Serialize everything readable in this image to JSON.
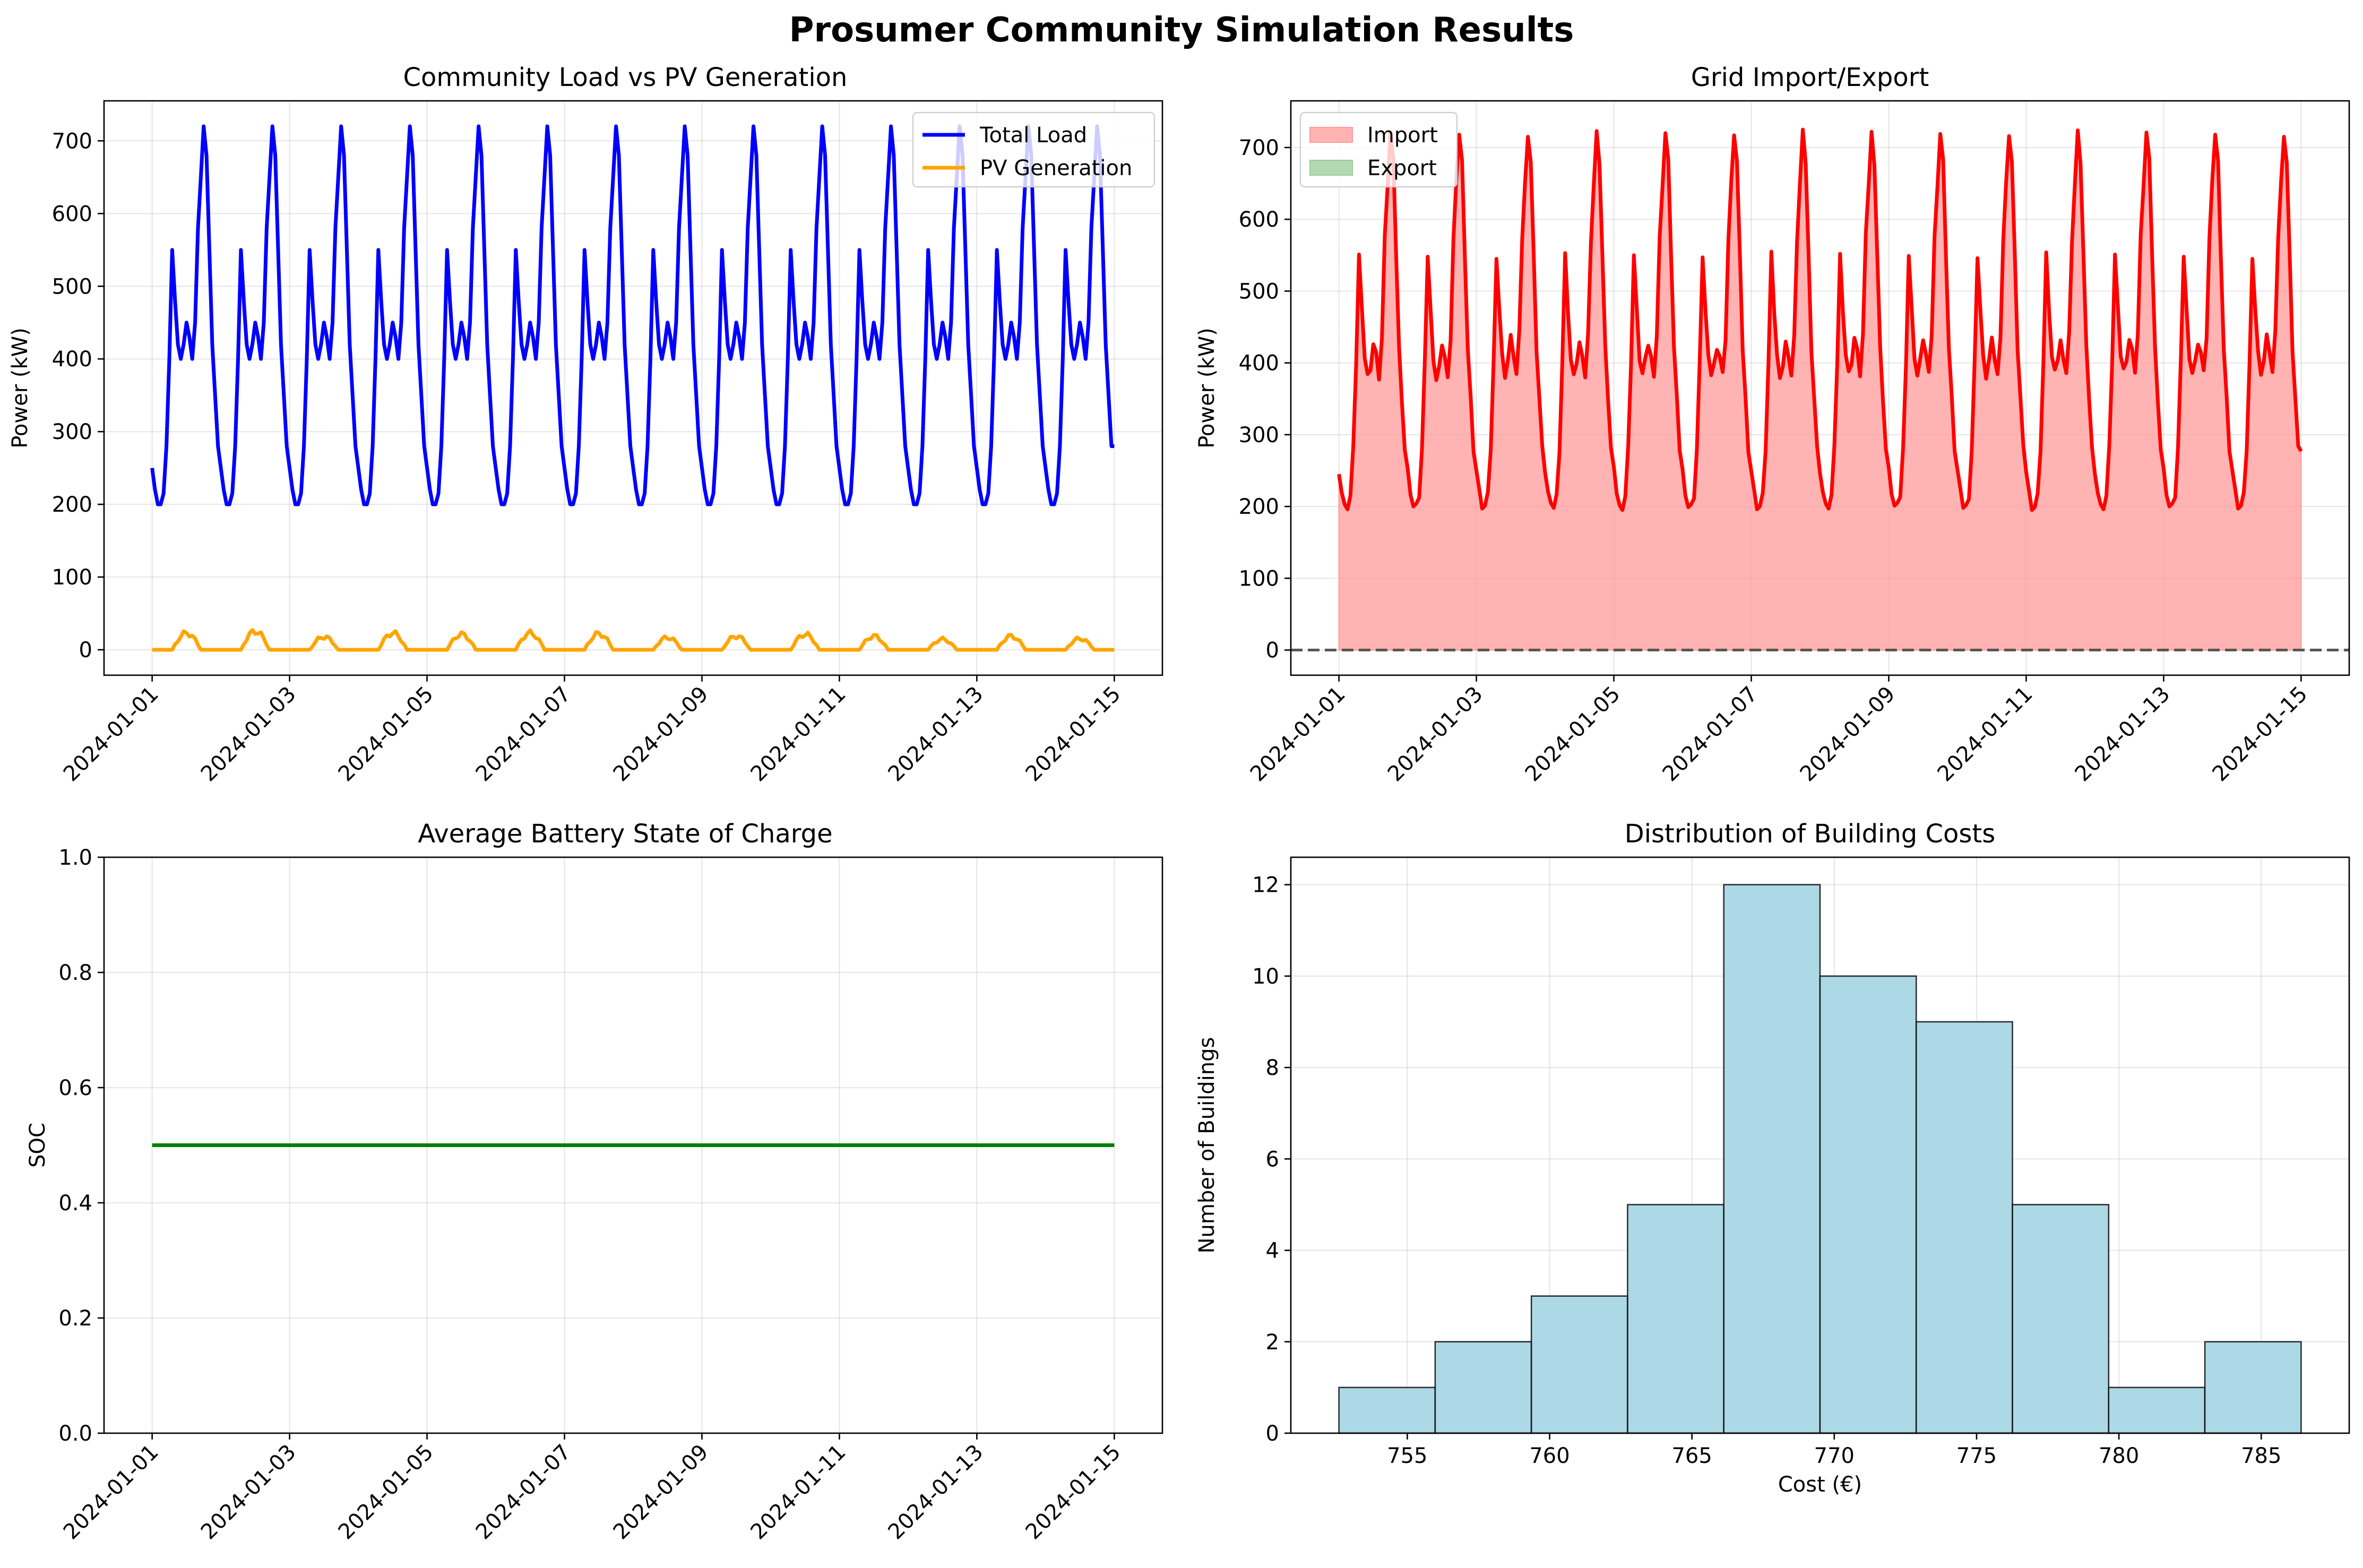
{
  "figure": {
    "title": "Prosumer Community Simulation Results"
  },
  "chart_data": [
    {
      "id": "load_pv",
      "type": "line",
      "title": "Community Load vs PV Generation",
      "xlabel": "",
      "ylabel": "Power (kW)",
      "x_type": "datetime",
      "x_range": [
        "2024-01-01",
        "2024-01-15"
      ],
      "x_ticks": [
        "2024-01-01",
        "2024-01-03",
        "2024-01-05",
        "2024-01-07",
        "2024-01-09",
        "2024-01-11",
        "2024-01-13",
        "2024-01-15"
      ],
      "ylim": [
        -35,
        755
      ],
      "y_ticks": [
        0,
        100,
        200,
        300,
        400,
        500,
        600,
        700
      ],
      "grid": true,
      "legend": "upper right",
      "colors": {
        "Total Load": "#0000ff",
        "PV Generation": "#ffa500"
      },
      "series": [
        {
          "name": "Total Load",
          "daily_profile_hourly": [
            250,
            220,
            200,
            200,
            215,
            280,
            400,
            550,
            480,
            420,
            400,
            420,
            450,
            430,
            400,
            450,
            580,
            650,
            720,
            680,
            550,
            420,
            350,
            280
          ],
          "days": 14
        },
        {
          "name": "PV Generation",
          "daily_peaks": [
            27,
            30,
            21,
            27,
            25,
            27,
            26,
            20,
            22,
            25,
            22,
            17,
            22,
            18
          ],
          "daylight_hours": [
            7,
            17
          ],
          "days": 14
        }
      ]
    },
    {
      "id": "grid",
      "type": "area",
      "title": "Grid Import/Export",
      "xlabel": "",
      "ylabel": "Power (kW)",
      "x_type": "datetime",
      "x_range": [
        "2024-01-01",
        "2024-01-15"
      ],
      "x_ticks": [
        "2024-01-01",
        "2024-01-03",
        "2024-01-05",
        "2024-01-07",
        "2024-01-09",
        "2024-01-11",
        "2024-01-13",
        "2024-01-15"
      ],
      "ylim": [
        -35,
        765
      ],
      "y_ticks": [
        0,
        100,
        200,
        300,
        400,
        500,
        600,
        700
      ],
      "grid": true,
      "legend": "upper left",
      "zero_line": true,
      "colors": {
        "line": "#ff0000",
        "Import": "#ff9999",
        "Export": "#99cc99"
      },
      "series": [
        {
          "name": "Import",
          "derived": "Total Load - PV Generation"
        },
        {
          "name": "Export",
          "values": "0"
        }
      ]
    },
    {
      "id": "soc",
      "type": "line",
      "title": "Average Battery State of Charge",
      "xlabel": "",
      "ylabel": "SOC",
      "x_type": "datetime",
      "x_range": [
        "2024-01-01",
        "2024-01-15"
      ],
      "x_ticks": [
        "2024-01-01",
        "2024-01-03",
        "2024-01-05",
        "2024-01-07",
        "2024-01-09",
        "2024-01-11",
        "2024-01-13",
        "2024-01-15"
      ],
      "ylim": [
        0,
        1
      ],
      "y_ticks": [
        "0.0",
        "0.2",
        "0.4",
        "0.6",
        "0.8",
        "1.0"
      ],
      "grid": true,
      "colors": {
        "SOC": "#008000"
      },
      "series": [
        {
          "x": [
            "2024-01-01",
            "2024-01-15"
          ],
          "values": [
            0.5,
            0.5
          ]
        }
      ]
    },
    {
      "id": "costs",
      "type": "bar",
      "title": "Distribution of Building Costs",
      "xlabel": "Cost (€)",
      "ylabel": "Number of Buildings",
      "bin_edges": [
        752.6,
        755.98,
        759.36,
        762.74,
        766.12,
        769.5,
        772.88,
        776.26,
        779.64,
        783.02,
        786.4
      ],
      "values": [
        1,
        2,
        3,
        5,
        12,
        10,
        9,
        5,
        1,
        2
      ],
      "xlim": [
        752.6,
        786.4
      ],
      "x_ticks": [
        755,
        760,
        765,
        770,
        775,
        780,
        785
      ],
      "ylim": [
        0,
        12.6
      ],
      "y_ticks": [
        0,
        2,
        4,
        6,
        8,
        10,
        12
      ],
      "grid": true,
      "colors": {
        "bar": "#add8e6",
        "edge": "#000000"
      }
    }
  ]
}
